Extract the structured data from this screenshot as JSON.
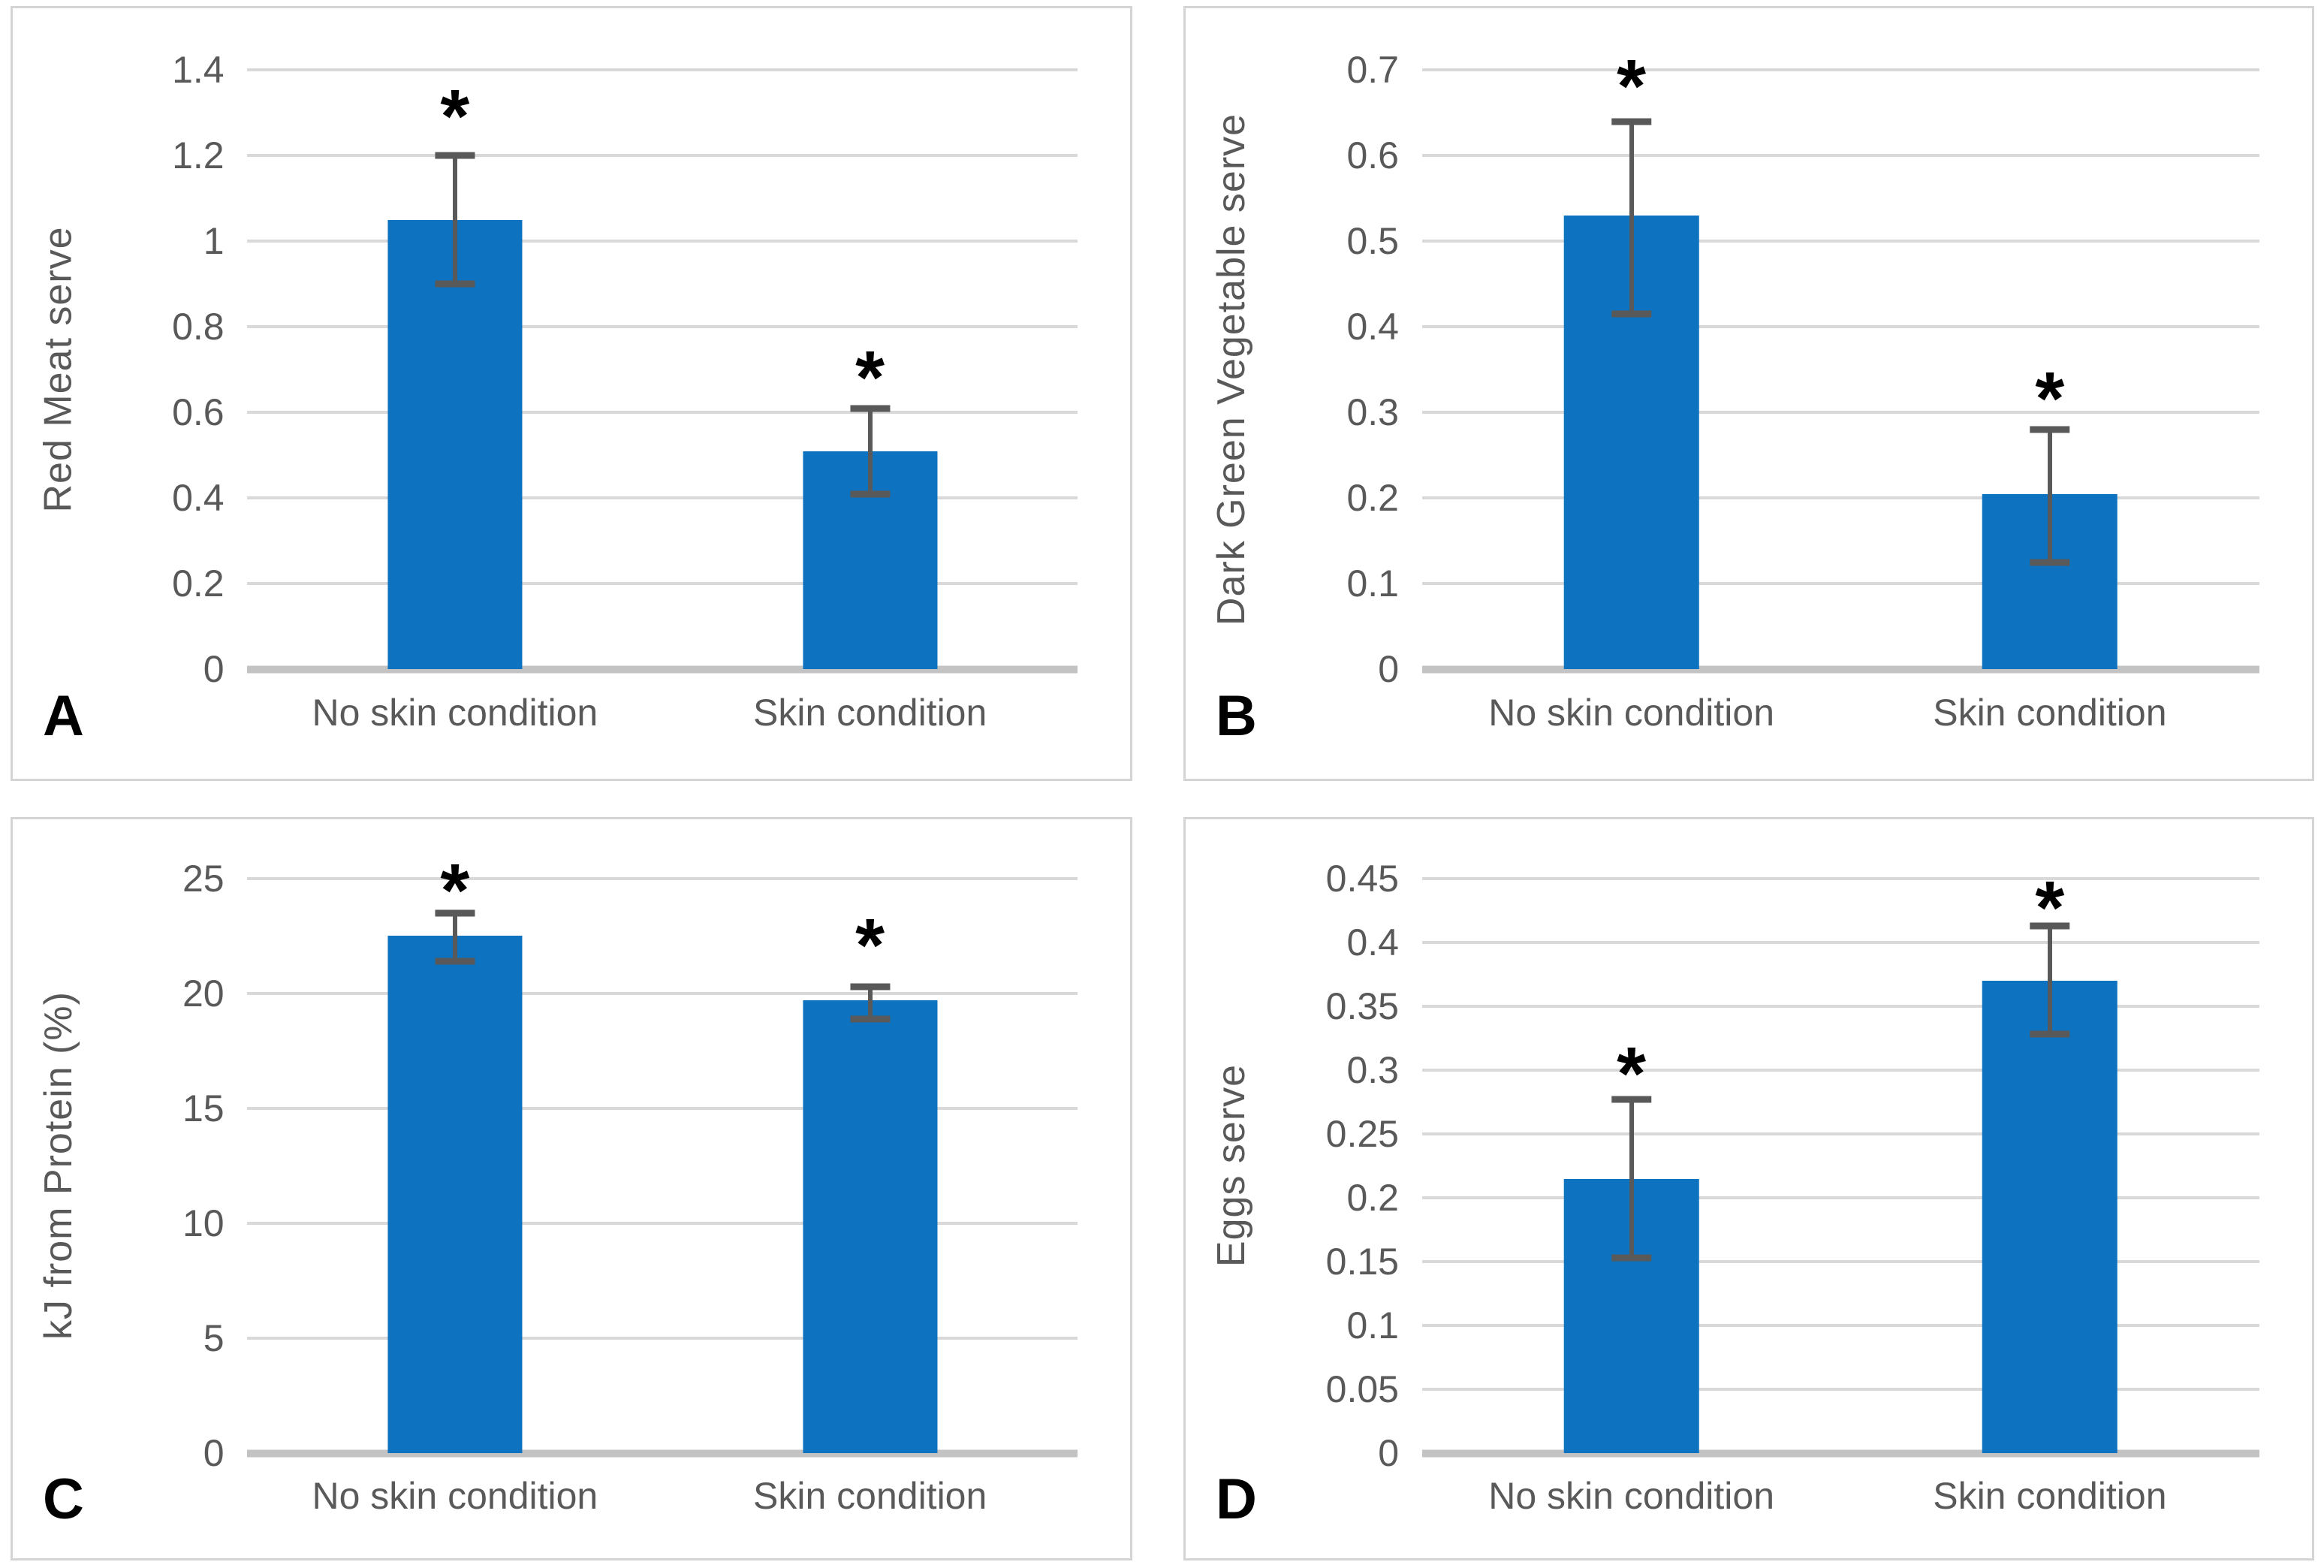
{
  "colors": {
    "bar": "#0d72bf",
    "error_bar": "#595959",
    "gridline": "#d9d9d9",
    "axis_line": "#c3c3c3",
    "tick_text": "#595959",
    "panel_letter": "#000000",
    "panel_border": "#d4d4d4",
    "background": "#ffffff"
  },
  "chart_data": [
    {
      "type": "bar",
      "panel_letter": "A",
      "ylabel": "Red Meat serve",
      "categories": [
        "No skin condition",
        "Skin condition"
      ],
      "values": [
        1.05,
        0.51
      ],
      "error_low": [
        0.9,
        0.41
      ],
      "error_high": [
        1.2,
        0.61
      ],
      "significance_markers": [
        "*",
        "*"
      ],
      "significance_y": [
        1.33,
        0.72
      ],
      "ylim": [
        0,
        1.4
      ],
      "yticks": [
        0,
        0.2,
        0.4,
        0.6,
        0.8,
        1,
        1.2,
        1.4
      ],
      "ytick_labels": [
        "0",
        "0.2",
        "0.4",
        "0.6",
        "0.8",
        "1",
        "1.2",
        "1.4"
      ],
      "grid": true,
      "legend": "none"
    },
    {
      "type": "bar",
      "panel_letter": "B",
      "ylabel": "Dark Green Vegetable serve",
      "categories": [
        "No skin condition",
        "Skin condition"
      ],
      "values": [
        0.53,
        0.205
      ],
      "error_low": [
        0.415,
        0.125
      ],
      "error_high": [
        0.64,
        0.28
      ],
      "significance_markers": [
        "*",
        "*"
      ],
      "significance_y": [
        0.7,
        0.335
      ],
      "ylim": [
        0,
        0.7
      ],
      "yticks": [
        0,
        0.1,
        0.2,
        0.3,
        0.4,
        0.5,
        0.6,
        0.7
      ],
      "ytick_labels": [
        "0",
        "0.1",
        "0.2",
        "0.3",
        "0.4",
        "0.5",
        "0.6",
        "0.7"
      ],
      "grid": true,
      "legend": "none"
    },
    {
      "type": "bar",
      "panel_letter": "C",
      "ylabel": "kJ from Protein (%)",
      "categories": [
        "No skin condition",
        "Skin condition"
      ],
      "values": [
        22.5,
        19.7
      ],
      "error_low": [
        21.4,
        18.9
      ],
      "error_high": [
        23.5,
        20.3
      ],
      "significance_markers": [
        "*",
        "*"
      ],
      "significance_y": [
        25.2,
        22.8
      ],
      "ylim": [
        0,
        25
      ],
      "yticks": [
        0,
        5,
        10,
        15,
        20,
        25
      ],
      "ytick_labels": [
        "0",
        "5",
        "10",
        "15",
        "20",
        "25"
      ],
      "grid": true,
      "legend": "none"
    },
    {
      "type": "bar",
      "panel_letter": "D",
      "ylabel": "Eggs serve",
      "categories": [
        "No skin condition",
        "Skin condition"
      ],
      "values": [
        0.215,
        0.37
      ],
      "error_low": [
        0.153,
        0.328
      ],
      "error_high": [
        0.277,
        0.413
      ],
      "significance_markers": [
        "*",
        "*"
      ],
      "significance_y": [
        0.31,
        0.44
      ],
      "ylim": [
        0,
        0.45
      ],
      "yticks": [
        0,
        0.05,
        0.1,
        0.15,
        0.2,
        0.25,
        0.3,
        0.35,
        0.4,
        0.45
      ],
      "ytick_labels": [
        "0",
        "0.05",
        "0.1",
        "0.15",
        "0.2",
        "0.25",
        "0.3",
        "0.35",
        "0.4",
        "0.45"
      ],
      "grid": true,
      "legend": "none"
    }
  ]
}
